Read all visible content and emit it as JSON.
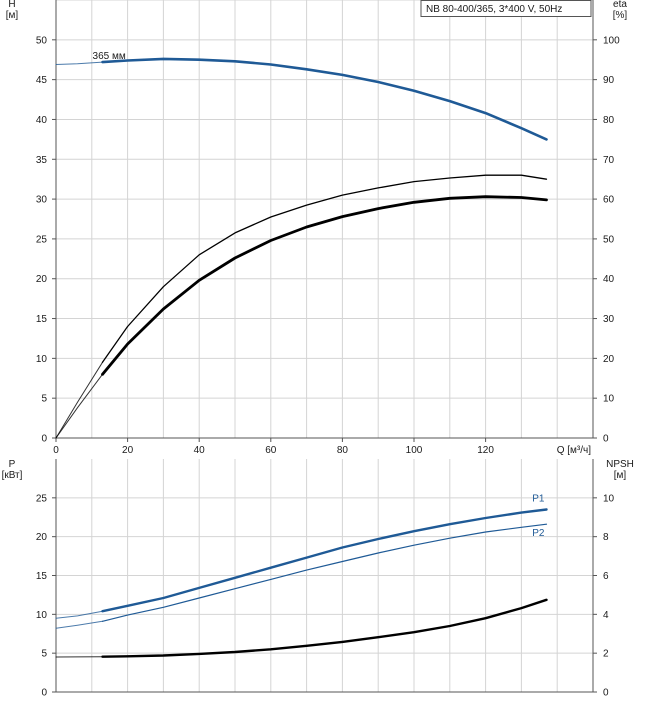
{
  "chart_data": [
    {
      "type": "line",
      "legend_box": "NB 80-400/365, 3*400 V, 50Hz",
      "y_left_label": [
        "H",
        "[м]"
      ],
      "y_right_label": [
        "eta",
        "[%]"
      ],
      "x_label": "Q [м³/ч]",
      "xlim": [
        0,
        150
      ],
      "x_ticks": [
        0,
        20,
        40,
        60,
        80,
        100,
        120
      ],
      "ylim_left": [
        0,
        55
      ],
      "y_ticks_left": [
        0,
        5,
        10,
        15,
        20,
        25,
        30,
        35,
        40,
        45,
        50
      ],
      "ylim_right": [
        0,
        110
      ],
      "y_ticks_right": [
        0,
        10,
        20,
        30,
        40,
        50,
        60,
        70,
        80,
        90,
        100
      ],
      "grid": true,
      "annotations": [
        {
          "text": "365 мм",
          "x": 13,
          "y": 47.2
        }
      ],
      "series": [
        {
          "axis": "left",
          "color": "#1f5a96",
          "width": 2.6,
          "x": [
            13,
            20,
            30,
            40,
            50,
            60,
            70,
            80,
            90,
            100,
            110,
            120,
            130,
            137
          ],
          "y": [
            47.2,
            47.4,
            47.6,
            47.5,
            47.3,
            46.9,
            46.3,
            45.6,
            44.7,
            43.6,
            42.3,
            40.8,
            38.9,
            37.5
          ]
        },
        {
          "axis": "left",
          "color": "#1f5a96",
          "width": 1,
          "faint": true,
          "x": [
            0,
            6,
            13
          ],
          "y": [
            46.9,
            47.0,
            47.2
          ]
        },
        {
          "axis": "right",
          "color": "#000000",
          "width": 1.3,
          "x": [
            13,
            20,
            30,
            40,
            50,
            60,
            70,
            80,
            90,
            100,
            110,
            120,
            130,
            137
          ],
          "y": [
            19,
            28,
            38,
            46,
            51.5,
            55.5,
            58.5,
            61,
            62.8,
            64.4,
            65.3,
            66,
            66,
            65
          ]
        },
        {
          "axis": "right",
          "color": "#000000",
          "width": 1,
          "faint": true,
          "x": [
            0,
            6,
            13
          ],
          "y": [
            0,
            9,
            19
          ]
        },
        {
          "axis": "left",
          "color": "#000000",
          "width": 2.8,
          "x": [
            13,
            20,
            30,
            40,
            50,
            60,
            70,
            80,
            90,
            100,
            110,
            120,
            130,
            137
          ],
          "y": [
            8,
            11.8,
            16.2,
            19.8,
            22.6,
            24.8,
            26.5,
            27.8,
            28.8,
            29.6,
            30.1,
            30.3,
            30.2,
            29.9
          ]
        },
        {
          "axis": "left",
          "color": "#000000",
          "width": 1,
          "faint": true,
          "x": [
            0,
            6,
            13
          ],
          "y": [
            0,
            3.8,
            8
          ]
        }
      ]
    },
    {
      "type": "line",
      "y_left_label": [
        "P",
        "[кВт]"
      ],
      "y_right_label": [
        "NPSH",
        "[м]"
      ],
      "xlim": [
        0,
        150
      ],
      "ylim_left": [
        0,
        30
      ],
      "y_ticks_left": [
        0,
        5,
        10,
        15,
        20,
        25
      ],
      "ylim_right": [
        0,
        12
      ],
      "y_ticks_right": [
        0,
        2,
        4,
        6,
        8,
        10
      ],
      "grid": true,
      "series": [
        {
          "name": "P1",
          "axis": "left",
          "color": "#1f5a96",
          "width": 2.4,
          "x": [
            13,
            20,
            30,
            40,
            50,
            60,
            70,
            80,
            90,
            100,
            110,
            120,
            130,
            137
          ],
          "y": [
            10.4,
            11.1,
            12.1,
            13.4,
            14.7,
            16.0,
            17.3,
            18.6,
            19.7,
            20.7,
            21.6,
            22.4,
            23.1,
            23.5
          ]
        },
        {
          "axis": "left",
          "color": "#1f5a96",
          "width": 1,
          "faint": true,
          "x": [
            0,
            6,
            13
          ],
          "y": [
            9.5,
            9.8,
            10.4
          ]
        },
        {
          "name": "P2",
          "axis": "left",
          "color": "#1f5a96",
          "width": 1.2,
          "x": [
            13,
            20,
            30,
            40,
            50,
            60,
            70,
            80,
            90,
            100,
            110,
            120,
            130,
            137
          ],
          "y": [
            9.1,
            9.9,
            10.9,
            12.1,
            13.3,
            14.5,
            15.7,
            16.8,
            17.9,
            18.9,
            19.8,
            20.6,
            21.2,
            21.6
          ]
        },
        {
          "axis": "left",
          "color": "#1f5a96",
          "width": 1,
          "faint": true,
          "x": [
            0,
            6,
            13
          ],
          "y": [
            8.2,
            8.6,
            9.1
          ]
        },
        {
          "axis": "right",
          "color": "#000000",
          "width": 2.4,
          "x": [
            13,
            20,
            30,
            40,
            50,
            60,
            70,
            80,
            90,
            100,
            110,
            120,
            130,
            137
          ],
          "y": [
            1.82,
            1.84,
            1.88,
            1.96,
            2.06,
            2.2,
            2.38,
            2.58,
            2.82,
            3.08,
            3.4,
            3.8,
            4.32,
            4.75
          ]
        },
        {
          "axis": "right",
          "color": "#000000",
          "width": 1,
          "faint": true,
          "x": [
            0,
            6,
            13
          ],
          "y": [
            1.8,
            1.81,
            1.82
          ]
        }
      ]
    }
  ]
}
